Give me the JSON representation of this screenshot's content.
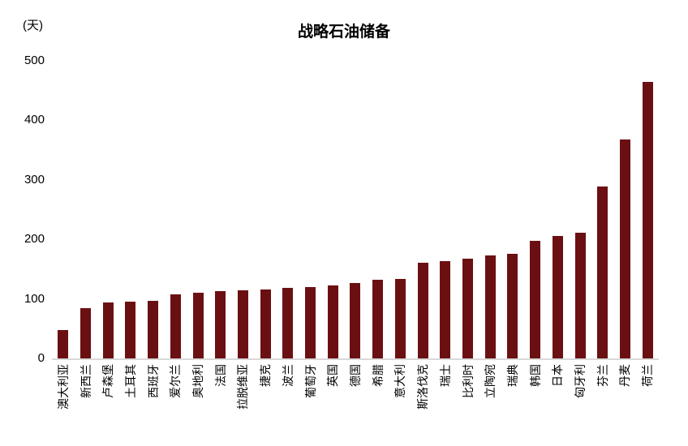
{
  "header": {
    "title": "战略石油储备",
    "unit": "(天)"
  },
  "chart_data": {
    "type": "bar",
    "title": "战略石油储备",
    "ylabel_unit": "(天)",
    "categories": [
      "澳大利亚",
      "新西兰",
      "卢森堡",
      "土耳其",
      "西班牙",
      "爱尔兰",
      "奥地利",
      "法国",
      "拉脱维亚",
      "捷克",
      "波兰",
      "葡萄牙",
      "英国",
      "德国",
      "希腊",
      "意大利",
      "斯洛伐克",
      "瑞士",
      "比利时",
      "立陶宛",
      "瑞典",
      "韩国",
      "日本",
      "匈牙利",
      "芬兰",
      "丹麦",
      "荷兰"
    ],
    "values": [
      48,
      85,
      94,
      95,
      97,
      107,
      111,
      113,
      114,
      116,
      118,
      120,
      122,
      127,
      132,
      134,
      161,
      164,
      167,
      173,
      176,
      197,
      206,
      211,
      289,
      368,
      464
    ],
    "ylim": [
      0,
      500
    ],
    "yticks": [
      0,
      100,
      200,
      300,
      400,
      500
    ],
    "grid": false,
    "legend": "none",
    "bar_color": "#6b1012",
    "axis_line_color": "#d9d9d9",
    "text_color": "#000000"
  }
}
